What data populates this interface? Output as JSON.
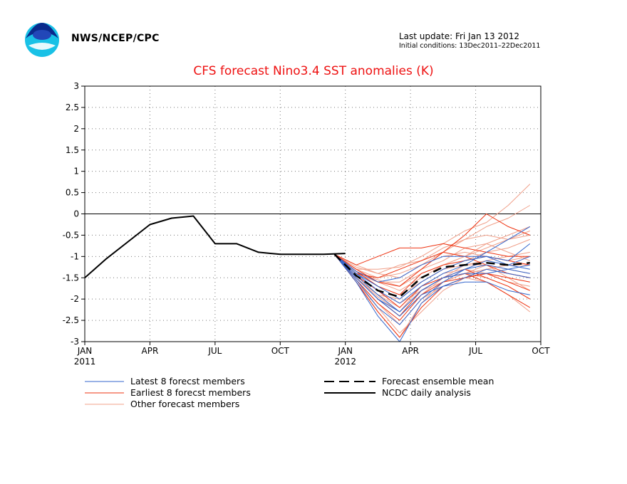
{
  "header": {
    "agency": "NWS/NCEP/CPC",
    "last_update": "Last update: Fri Jan 13 2012",
    "initial_conditions": "Initial conditions: 13Dec2011–22Dec2011",
    "logo_icon": "noaa-logo-icon"
  },
  "colors": {
    "latest": "#3366cc",
    "earliest": "#ee3311",
    "other": "#f0a08a",
    "analysis": "#000000",
    "title": "#ee1111"
  },
  "chart_data": {
    "type": "line",
    "title": "CFS forecast Nino3.4 SST anomalies (K)",
    "xlabel": "",
    "ylabel": "",
    "ylim": [
      -3,
      3
    ],
    "yticks": [
      "3",
      "2.5",
      "2",
      "1.5",
      "1",
      "0.5",
      "0",
      "-0.5",
      "-1",
      "-1.5",
      "-2",
      "-2.5",
      "-3"
    ],
    "x_months_range": [
      0,
      21
    ],
    "xticks": [
      {
        "m": 0,
        "label": "JAN",
        "sub": "2011"
      },
      {
        "m": 3,
        "label": "APR",
        "sub": ""
      },
      {
        "m": 6,
        "label": "JUL",
        "sub": ""
      },
      {
        "m": 9,
        "label": "OCT",
        "sub": ""
      },
      {
        "m": 12,
        "label": "JAN",
        "sub": "2012"
      },
      {
        "m": 15,
        "label": "APR",
        "sub": ""
      },
      {
        "m": 18,
        "label": "JUL",
        "sub": ""
      },
      {
        "m": 21,
        "label": "OCT",
        "sub": ""
      }
    ],
    "grid": true,
    "zero_line": true,
    "legend": [
      {
        "key": "latest",
        "label": "Latest 8 forecst members",
        "style": "thin"
      },
      {
        "key": "earliest",
        "label": "Earliest 8 forecst members",
        "style": "thin"
      },
      {
        "key": "other",
        "label": "Other forecast members",
        "style": "thin"
      },
      {
        "key": "mean",
        "label": "Forecast ensemble mean",
        "style": "dashed"
      },
      {
        "key": "analysis",
        "label": "NCDC daily analysis",
        "style": "thick"
      }
    ],
    "forecast_months": [
      11.5,
      12.5,
      13.5,
      14.5,
      15.5,
      16.5,
      17.5,
      18.5,
      19.5,
      20.5
    ],
    "series": [
      {
        "key": "analysis",
        "x": [
          0,
          1,
          2,
          3,
          4,
          5,
          6,
          7,
          8,
          9,
          10,
          11,
          12
        ],
        "values": [
          -1.5,
          -1.05,
          -0.65,
          -0.25,
          -0.1,
          -0.05,
          -0.7,
          -0.7,
          -0.9,
          -0.95,
          -0.95,
          -0.95,
          -0.93
        ]
      },
      {
        "key": "mean",
        "values": [
          -0.95,
          -1.45,
          -1.8,
          -1.95,
          -1.5,
          -1.25,
          -1.2,
          -1.15,
          -1.2,
          -1.15
        ]
      },
      {
        "key": "other",
        "values": [
          -0.95,
          -1.2,
          -1.4,
          -1.5,
          -1.2,
          -0.9,
          -0.6,
          -0.3,
          -0.1,
          0.2
        ]
      },
      {
        "key": "other",
        "values": [
          -0.95,
          -1.3,
          -1.3,
          -1.25,
          -1.0,
          -0.7,
          -0.4,
          -0.2,
          0.2,
          0.7
        ]
      },
      {
        "key": "other",
        "values": [
          -0.95,
          -1.4,
          -1.6,
          -1.8,
          -1.5,
          -1.2,
          -1.0,
          -0.8,
          -0.6,
          -0.4
        ]
      },
      {
        "key": "other",
        "values": [
          -0.95,
          -1.5,
          -2.0,
          -2.4,
          -1.9,
          -1.5,
          -1.2,
          -1.1,
          -1.0,
          -0.9
        ]
      },
      {
        "key": "other",
        "values": [
          -0.95,
          -1.6,
          -2.2,
          -2.8,
          -2.3,
          -1.8,
          -1.5,
          -1.3,
          -1.4,
          -1.5
        ]
      },
      {
        "key": "other",
        "values": [
          -0.95,
          -1.45,
          -1.9,
          -2.2,
          -1.7,
          -1.5,
          -1.4,
          -1.5,
          -1.7,
          -2.0
        ]
      },
      {
        "key": "other",
        "values": [
          -0.95,
          -1.3,
          -1.5,
          -1.4,
          -1.2,
          -1.0,
          -0.9,
          -1.0,
          -1.1,
          -1.0
        ]
      },
      {
        "key": "other",
        "values": [
          -0.95,
          -1.55,
          -2.1,
          -2.6,
          -2.0,
          -1.7,
          -1.5,
          -1.6,
          -1.9,
          -2.3
        ]
      },
      {
        "key": "other",
        "values": [
          -0.95,
          -1.35,
          -1.7,
          -1.9,
          -1.6,
          -1.3,
          -1.1,
          -0.9,
          -0.8,
          -0.6
        ]
      },
      {
        "key": "other",
        "values": [
          -0.95,
          -1.45,
          -1.8,
          -2.1,
          -1.8,
          -1.6,
          -1.4,
          -1.3,
          -1.2,
          -1.2
        ]
      },
      {
        "key": "other",
        "values": [
          -0.95,
          -1.25,
          -1.4,
          -1.2,
          -1.1,
          -0.8,
          -0.6,
          -0.5,
          -0.6,
          -0.5
        ]
      },
      {
        "key": "other",
        "values": [
          -0.95,
          -1.5,
          -1.95,
          -2.3,
          -1.7,
          -1.4,
          -1.3,
          -1.4,
          -1.6,
          -1.7
        ]
      },
      {
        "key": "other",
        "values": [
          -0.95,
          -1.4,
          -1.6,
          -1.6,
          -1.3,
          -1.1,
          -0.8,
          -0.7,
          -0.9,
          -1.1
        ]
      },
      {
        "key": "other",
        "values": [
          -0.95,
          -1.6,
          -2.3,
          -2.9,
          -2.1,
          -1.6,
          -1.4,
          -1.2,
          -1.5,
          -1.8
        ]
      },
      {
        "key": "other",
        "values": [
          -0.95,
          -1.35,
          -1.55,
          -1.7,
          -1.4,
          -1.2,
          -1.0,
          -0.7,
          -0.5,
          -0.3
        ]
      },
      {
        "key": "other",
        "values": [
          -0.95,
          -1.5,
          -1.9,
          -2.0,
          -1.6,
          -1.3,
          -1.2,
          -1.2,
          -1.3,
          -1.4
        ]
      },
      {
        "key": "earliest",
        "values": [
          -0.95,
          -1.3,
          -1.6,
          -1.7,
          -1.3,
          -0.9,
          -0.5,
          0.0,
          -0.3,
          -0.5
        ]
      },
      {
        "key": "earliest",
        "values": [
          -0.95,
          -1.5,
          -2.0,
          -2.4,
          -1.8,
          -1.5,
          -1.4,
          -1.6,
          -1.9,
          -2.2
        ]
      },
      {
        "key": "earliest",
        "values": [
          -0.95,
          -1.2,
          -1.0,
          -0.8,
          -0.8,
          -0.7,
          -0.8,
          -0.9,
          -1.0,
          -1.0
        ]
      },
      {
        "key": "earliest",
        "values": [
          -0.95,
          -1.6,
          -2.3,
          -2.9,
          -2.2,
          -1.7,
          -1.5,
          -1.4,
          -1.6,
          -1.8
        ]
      },
      {
        "key": "earliest",
        "values": [
          -0.95,
          -1.45,
          -1.8,
          -2.2,
          -1.7,
          -1.5,
          -1.3,
          -1.5,
          -1.7,
          -2.0
        ]
      },
      {
        "key": "earliest",
        "values": [
          -0.95,
          -1.35,
          -1.7,
          -1.9,
          -1.4,
          -1.2,
          -1.1,
          -1.0,
          -1.1,
          -1.2
        ]
      },
      {
        "key": "earliest",
        "values": [
          -0.95,
          -1.55,
          -2.1,
          -2.5,
          -1.9,
          -1.6,
          -1.5,
          -1.4,
          -1.5,
          -1.6
        ]
      },
      {
        "key": "earliest",
        "values": [
          -0.95,
          -1.4,
          -1.5,
          -1.3,
          -1.1,
          -0.9,
          -1.0,
          -1.2,
          -1.4,
          -1.5
        ]
      },
      {
        "key": "latest",
        "values": [
          -0.95,
          -1.5,
          -2.0,
          -2.3,
          -1.8,
          -1.5,
          -1.3,
          -1.2,
          -1.3,
          -1.2
        ]
      },
      {
        "key": "latest",
        "values": [
          -0.95,
          -1.6,
          -2.4,
          -3.0,
          -2.1,
          -1.7,
          -1.5,
          -1.3,
          -1.4,
          -1.5
        ]
      },
      {
        "key": "latest",
        "values": [
          -0.95,
          -1.4,
          -1.8,
          -2.1,
          -1.7,
          -1.4,
          -1.2,
          -0.9,
          -0.6,
          -0.3
        ]
      },
      {
        "key": "latest",
        "values": [
          -0.95,
          -1.35,
          -1.6,
          -1.5,
          -1.2,
          -1.0,
          -1.0,
          -1.0,
          -1.2,
          -1.0
        ]
      },
      {
        "key": "latest",
        "values": [
          -0.95,
          -1.5,
          -2.0,
          -2.4,
          -1.9,
          -1.7,
          -1.6,
          -1.6,
          -1.8,
          -1.9
        ]
      },
      {
        "key": "latest",
        "values": [
          -0.95,
          -1.45,
          -1.9,
          -2.3,
          -1.8,
          -1.5,
          -1.4,
          -1.4,
          -1.3,
          -1.4
        ]
      },
      {
        "key": "latest",
        "values": [
          -0.95,
          -1.55,
          -2.2,
          -2.6,
          -2.0,
          -1.6,
          -1.3,
          -1.1,
          -1.2,
          -1.3
        ]
      },
      {
        "key": "latest",
        "values": [
          -0.95,
          -1.4,
          -1.7,
          -2.0,
          -1.6,
          -1.3,
          -1.1,
          -1.0,
          -1.1,
          -0.7
        ]
      }
    ]
  }
}
